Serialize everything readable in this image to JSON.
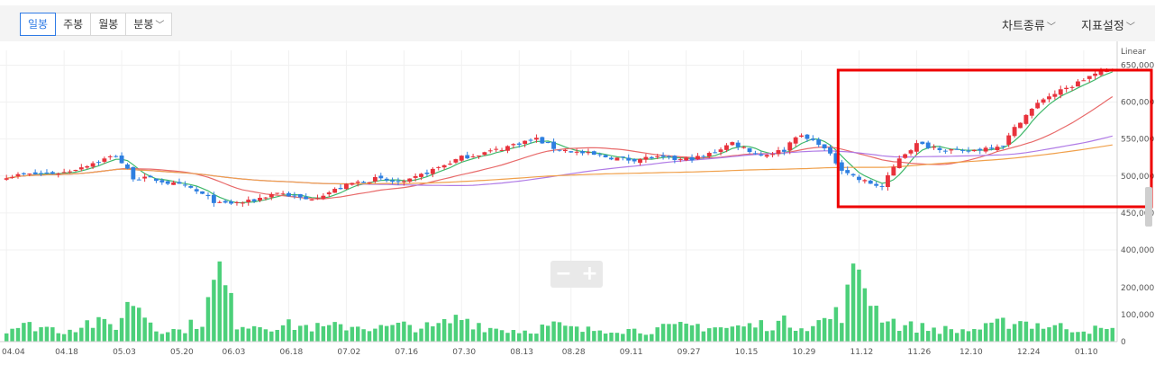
{
  "tabs": [
    {
      "label": "일봉",
      "active": true
    },
    {
      "label": "주봉",
      "active": false
    },
    {
      "label": "월봉",
      "active": false
    },
    {
      "label": "분봉",
      "active": false,
      "dropdown": true
    }
  ],
  "menus": {
    "chart_type": "차트종류",
    "indicator": "지표설정"
  },
  "colors": {
    "up": "#e8323c",
    "down": "#2e7fe0",
    "volume": "#4cd07a",
    "ma5": "#3fb86a",
    "ma20": "#e86a6a",
    "ma60": "#b07be6",
    "ma120": "#f0a04b",
    "highlight": "#ee0000"
  },
  "chart_data": {
    "type": "candlestick",
    "price_scale": "Linear",
    "y_ticks": [
      "650,000",
      "600,000",
      "550,000",
      "500,000",
      "450,000",
      "400,000"
    ],
    "volume_ticks": [
      "200,000",
      "100,000",
      "0"
    ],
    "x_ticks": [
      "04.04",
      "04.18",
      "05.03",
      "05.20",
      "06.03",
      "06.18",
      "07.02",
      "07.16",
      "07.30",
      "08.13",
      "08.28",
      "09.11",
      "09.27",
      "10.15",
      "10.29",
      "11.12",
      "11.26",
      "12.10",
      "12.24",
      "01.10"
    ],
    "ylim": [
      400000,
      670000
    ],
    "volume_lim": [
      0,
      300000
    ],
    "price_anchors": [
      [
        0,
        500000
      ],
      [
        10,
        505000
      ],
      [
        19,
        528000
      ],
      [
        22,
        498000
      ],
      [
        26,
        495000
      ],
      [
        32,
        483000
      ],
      [
        37,
        462000
      ],
      [
        42,
        465000
      ],
      [
        47,
        478000
      ],
      [
        52,
        468000
      ],
      [
        56,
        478000
      ],
      [
        60,
        490000
      ],
      [
        64,
        496000
      ],
      [
        69,
        490000
      ],
      [
        73,
        505000
      ],
      [
        79,
        525000
      ],
      [
        85,
        535000
      ],
      [
        89,
        545000
      ],
      [
        92,
        550000
      ],
      [
        95,
        538000
      ],
      [
        99,
        532000
      ],
      [
        103,
        527000
      ],
      [
        108,
        522000
      ],
      [
        112,
        525000
      ],
      [
        117,
        522000
      ],
      [
        121,
        526000
      ],
      [
        126,
        545000
      ],
      [
        131,
        528000
      ],
      [
        135,
        535000
      ],
      [
        137,
        555000
      ],
      [
        141,
        545000
      ],
      [
        145,
        510000
      ],
      [
        148,
        495000
      ],
      [
        152,
        485000
      ],
      [
        155,
        525000
      ],
      [
        158,
        543000
      ],
      [
        162,
        538000
      ],
      [
        166,
        532000
      ],
      [
        170,
        538000
      ],
      [
        173,
        543000
      ],
      [
        176,
        575000
      ],
      [
        180,
        605000
      ],
      [
        184,
        618000
      ],
      [
        188,
        635000
      ],
      [
        192,
        645000
      ]
    ],
    "volume_anchors": [
      [
        0,
        50000
      ],
      [
        5,
        60000
      ],
      [
        10,
        40000
      ],
      [
        14,
        70000
      ],
      [
        19,
        60000
      ],
      [
        22,
        160000
      ],
      [
        26,
        50000
      ],
      [
        30,
        40000
      ],
      [
        34,
        80000
      ],
      [
        37,
        260000
      ],
      [
        40,
        70000
      ],
      [
        45,
        60000
      ],
      [
        50,
        60000
      ],
      [
        55,
        50000
      ],
      [
        60,
        60000
      ],
      [
        65,
        50000
      ],
      [
        70,
        60000
      ],
      [
        74,
        50000
      ],
      [
        79,
        90000
      ],
      [
        84,
        50000
      ],
      [
        90,
        40000
      ],
      [
        95,
        60000
      ],
      [
        100,
        40000
      ],
      [
        105,
        50000
      ],
      [
        110,
        40000
      ],
      [
        115,
        50000
      ],
      [
        120,
        60000
      ],
      [
        125,
        50000
      ],
      [
        130,
        60000
      ],
      [
        135,
        70000
      ],
      [
        140,
        60000
      ],
      [
        145,
        110000
      ],
      [
        148,
        280000
      ],
      [
        151,
        120000
      ],
      [
        153,
        90000
      ],
      [
        155,
        60000
      ],
      [
        160,
        50000
      ],
      [
        165,
        40000
      ],
      [
        170,
        50000
      ],
      [
        175,
        80000
      ],
      [
        180,
        60000
      ],
      [
        185,
        50000
      ],
      [
        192,
        40000
      ]
    ],
    "highlight_range_days": [
      145,
      192
    ]
  }
}
